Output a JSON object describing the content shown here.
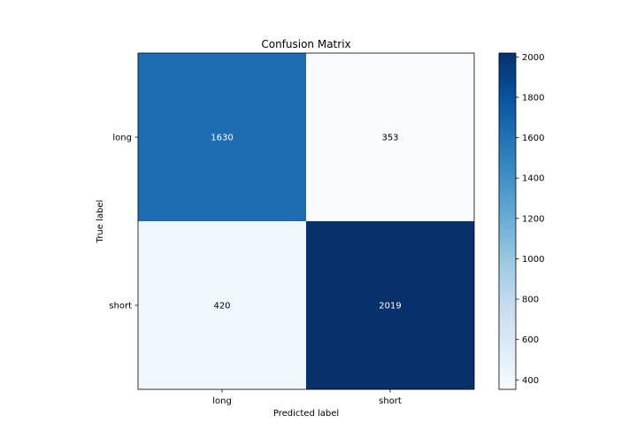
{
  "chart_data": {
    "type": "heatmap",
    "title": "Confusion Matrix",
    "xlabel": "Predicted label",
    "ylabel": "True label",
    "x_categories": [
      "long",
      "short"
    ],
    "y_categories": [
      "long",
      "short"
    ],
    "values": [
      [
        1630,
        353
      ],
      [
        420,
        2019
      ]
    ],
    "colormap": "Blues",
    "colorbar": {
      "range": [
        353,
        2019
      ],
      "ticks": [
        400,
        600,
        800,
        1000,
        1200,
        1400,
        1600,
        1800,
        2000
      ],
      "tick_labels": [
        "400",
        "600",
        "800",
        "1000",
        "1200",
        "1400",
        "1600",
        "1800",
        "2000"
      ]
    },
    "grid": false
  }
}
